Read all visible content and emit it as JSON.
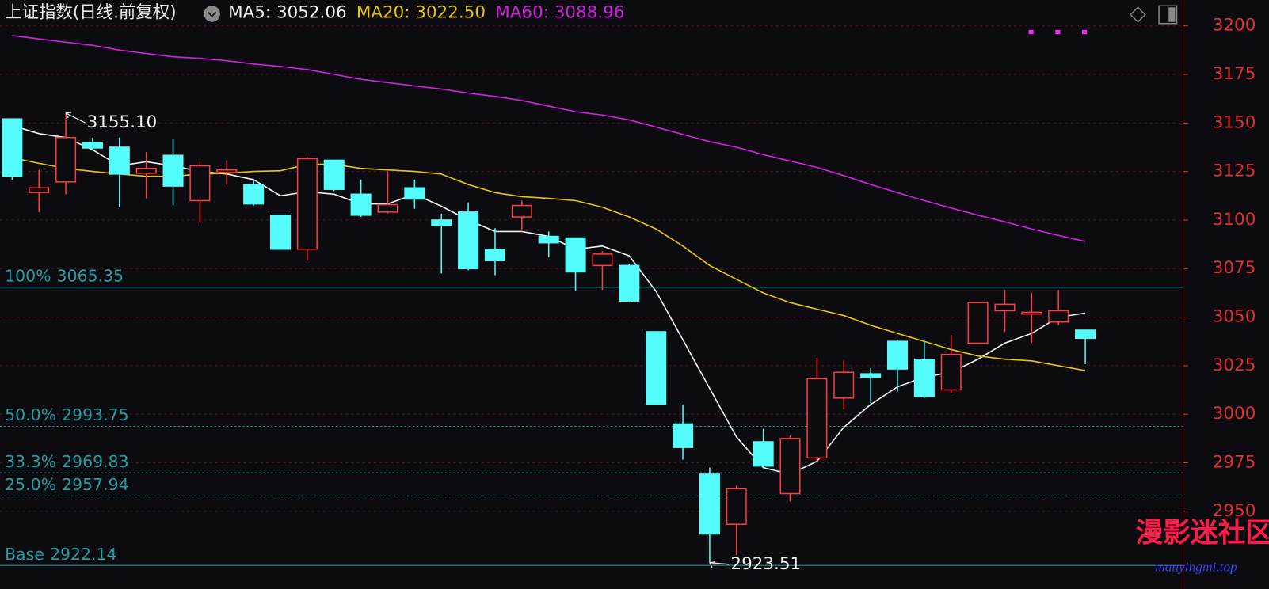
{
  "chart_data": {
    "type": "candlestick",
    "title": "上证指数(日线.前复权)",
    "up_color": "#ff3b3b",
    "down_color": "#54fcfc",
    "open": [
      3152.1,
      3114.2,
      3119.6,
      3140,
      3137.5,
      3124.1,
      3133.3,
      3110,
      3124.5,
      3118.3,
      3102.5,
      3085,
      3130.8,
      3113.3,
      3104.1,
      3116.6,
      3100,
      3104.1,
      3085,
      3101.6,
      3091.6,
      3090.8,
      3076.6,
      3076.6,
      3042.5,
      2995,
      2969.1,
      2943.3,
      2985.8,
      2959.1,
      2977.5,
      3008.3,
      3020.8,
      3037.5,
      3028.3,
      3012.5,
      3036.6,
      3053.3,
      3051.6,
      3047.5,
      3043.3
    ],
    "high": [
      3152.1,
      3125.8,
      3155.1,
      3142.5,
      3142.5,
      3135,
      3141.6,
      3130,
      3130.8,
      3120.8,
      3102.5,
      3132.5,
      3130.8,
      3120.8,
      3125,
      3120.8,
      3103.3,
      3109.1,
      3095.8,
      3110,
      3094.1,
      3090.8,
      3084.1,
      3077.5,
      3042.5,
      3005,
      2972.5,
      2963.3,
      2992.5,
      2989.1,
      3029.1,
      3027.5,
      3023.7,
      3038.3,
      3037.5,
      3040.8,
      3057.5,
      3064.1,
      3062.5,
      3064.1,
      3043.3
    ],
    "low": [
      3120.8,
      3104.1,
      3113.3,
      3135.8,
      3106.6,
      3111.2,
      3107.5,
      3098.3,
      3118.3,
      3107.5,
      3085,
      3079.1,
      3115,
      3101.6,
      3103.3,
      3105.8,
      3072.5,
      3074.1,
      3071.6,
      3094.1,
      3080.8,
      3063.3,
      3064.1,
      3057.5,
      3005,
      2976.6,
      2923.51,
      2927.5,
      2972.5,
      2955,
      2975.8,
      3002.5,
      3005.8,
      3011.6,
      3008.3,
      3010.8,
      3036.6,
      3042.5,
      3036.6,
      3045.8,
      3025.8
    ],
    "close": [
      3122.5,
      3116.6,
      3142.5,
      3137.1,
      3123.7,
      3126.6,
      3117.5,
      3127.9,
      3125.8,
      3108.3,
      3085,
      3131.6,
      3115.8,
      3102.5,
      3107.9,
      3110.8,
      3097.1,
      3075,
      3079.1,
      3107.5,
      3088.3,
      3073.3,
      3082.5,
      3058.3,
      3005,
      2982.9,
      2938.3,
      2961.6,
      2973.3,
      2987.5,
      3018.3,
      3021.6,
      3019.1,
      3023.3,
      3009.1,
      3030.8,
      3057.5,
      3056.6,
      3052.5,
      3053.3,
      3039.1
    ],
    "series": [
      {
        "name": "MA5: 3052.06",
        "color": "#f0f0f0",
        "values": [
          3148.7,
          3144.5,
          3142.5,
          3136.2,
          3127.9,
          3130,
          3127.9,
          3125,
          3123.7,
          3120.8,
          3112.5,
          3114.6,
          3113.3,
          3108.3,
          3108.3,
          3113.3,
          3107.1,
          3100,
          3094.1,
          3094.1,
          3091.6,
          3085,
          3086.6,
          3081.6,
          3063.3,
          3038.3,
          3013.3,
          2988.3,
          2972.5,
          2969.1,
          2975.8,
          2993.3,
          3005,
          3014.1,
          3019.1,
          3021.6,
          3028.3,
          3036.6,
          3041.6,
          3050,
          3052.06
        ]
      },
      {
        "name": "MA20: 3022.50",
        "color": "#e8c400",
        "values": [
          3132.1,
          3129.2,
          3126.6,
          3125,
          3123.7,
          3122.5,
          3122.5,
          3123.7,
          3124.1,
          3125,
          3125.4,
          3128.7,
          3128.7,
          3126.6,
          3125.8,
          3125,
          3123.7,
          3118.3,
          3114.1,
          3112,
          3111.2,
          3110,
          3106.6,
          3101.6,
          3095.4,
          3086.6,
          3076.6,
          3069.5,
          3062.5,
          3057.5,
          3054.1,
          3050.8,
          3045.8,
          3041.6,
          3037.5,
          3033.3,
          3030,
          3028.3,
          3027.5,
          3025,
          3022.5
        ]
      },
      {
        "name": "MA60: 3088.96",
        "color": "#d020e0",
        "values": [
          3195,
          3193.3,
          3191.6,
          3190,
          3187.5,
          3185.8,
          3184.1,
          3183.3,
          3182.1,
          3180.4,
          3179.1,
          3177.5,
          3175,
          3172.5,
          3170.8,
          3169.1,
          3167.5,
          3165.4,
          3163.7,
          3161.6,
          3158.7,
          3155.8,
          3154.1,
          3151.6,
          3147.9,
          3144.1,
          3140.4,
          3137.5,
          3133.7,
          3130.4,
          3127.1,
          3122.9,
          3118.3,
          3114.1,
          3110,
          3106.2,
          3102.5,
          3099.1,
          3095.4,
          3092.1,
          3088.96
        ]
      }
    ],
    "ylim": [
      2910,
      3213.3
    ],
    "yticks": [
      2950,
      2975,
      3000,
      3025,
      3050,
      3075,
      3100,
      3125,
      3150,
      3175,
      3200
    ],
    "tick_color": "#e03030",
    "levels": [
      {
        "pct": "100%",
        "value": 3065.35
      },
      {
        "pct": "50.0%",
        "value": 2993.75
      },
      {
        "pct": "33.3%",
        "value": 2969.83
      },
      {
        "pct": "25.0%",
        "value": 2957.94
      },
      {
        "pct": "Base",
        "value": 2922.14
      }
    ],
    "level_color": "#1f9ea4",
    "annotations": [
      {
        "value": 3155.1,
        "label": "3155.10",
        "index": 2
      },
      {
        "value": 2923.51,
        "index": 26
      }
    ],
    "watermark": {
      "title": "漫影迷社区",
      "url": "manyingmi.top"
    }
  }
}
